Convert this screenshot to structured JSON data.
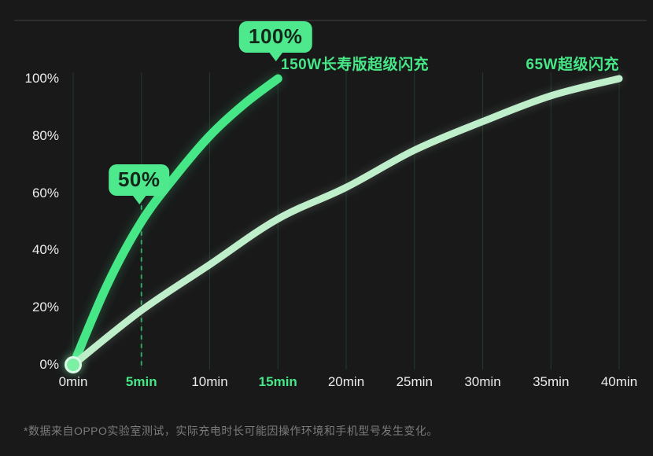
{
  "page": {
    "background": "#19191a",
    "accent_green": "#46e787",
    "pale_green": "#bfeeca",
    "grid_color": "#1f3a29",
    "text_color": "#ececec",
    "muted_text_color": "#7c7c7c"
  },
  "chart_data": {
    "type": "line",
    "title": "",
    "xlabel": "",
    "ylabel": "",
    "x_unit": "min",
    "y_unit": "%",
    "x_range_min": [
      0,
      40
    ],
    "y_range_pct": [
      0,
      100
    ],
    "grid": "vertical",
    "legend_position": "inline-labels",
    "x_ticks": [
      {
        "min": 0,
        "label": "0min",
        "highlight": false
      },
      {
        "min": 5,
        "label": "5min",
        "highlight": true
      },
      {
        "min": 10,
        "label": "10min",
        "highlight": false
      },
      {
        "min": 15,
        "label": "15min",
        "highlight": true
      },
      {
        "min": 20,
        "label": "20min",
        "highlight": false
      },
      {
        "min": 25,
        "label": "25min",
        "highlight": false
      },
      {
        "min": 30,
        "label": "30min",
        "highlight": false
      },
      {
        "min": 35,
        "label": "35min",
        "highlight": false
      },
      {
        "min": 40,
        "label": "40min",
        "highlight": false
      }
    ],
    "y_ticks": [
      {
        "pct": 0,
        "label": "0%"
      },
      {
        "pct": 20,
        "label": "20%"
      },
      {
        "pct": 40,
        "label": "40%"
      },
      {
        "pct": 60,
        "label": "60%"
      },
      {
        "pct": 80,
        "label": "80%"
      },
      {
        "pct": 100,
        "label": "100%"
      }
    ],
    "series": [
      {
        "name": "150W长寿版超级闪充",
        "color": "#46e787",
        "stroke_width": 11,
        "points": [
          {
            "min": 0,
            "pct": 0
          },
          {
            "min": 2.5,
            "pct": 28
          },
          {
            "min": 5,
            "pct": 50
          },
          {
            "min": 7.5,
            "pct": 66
          },
          {
            "min": 10,
            "pct": 80
          },
          {
            "min": 12.5,
            "pct": 91
          },
          {
            "min": 15,
            "pct": 100
          }
        ]
      },
      {
        "name": "65W超级闪充",
        "color": "#bfeeca",
        "stroke_width": 9,
        "points": [
          {
            "min": 0,
            "pct": 0
          },
          {
            "min": 5,
            "pct": 19
          },
          {
            "min": 10,
            "pct": 35
          },
          {
            "min": 15,
            "pct": 51
          },
          {
            "min": 20,
            "pct": 62
          },
          {
            "min": 25,
            "pct": 75
          },
          {
            "min": 30,
            "pct": 85
          },
          {
            "min": 35,
            "pct": 94
          },
          {
            "min": 40,
            "pct": 100
          }
        ]
      }
    ],
    "annotations": [
      {
        "label": "50%",
        "min": 5,
        "pct": 50
      },
      {
        "label": "100%",
        "min": 15,
        "pct": 100
      }
    ],
    "dashed_guide_min": 5,
    "start_dot": {
      "min": 0,
      "pct": 0,
      "fill": "#7cf0a5",
      "stroke": "#ddf9e7"
    }
  },
  "footer": {
    "note": "*数据来自OPPO实验室测试，实际充电时长可能因操作环境和手机型号发生变化。"
  }
}
